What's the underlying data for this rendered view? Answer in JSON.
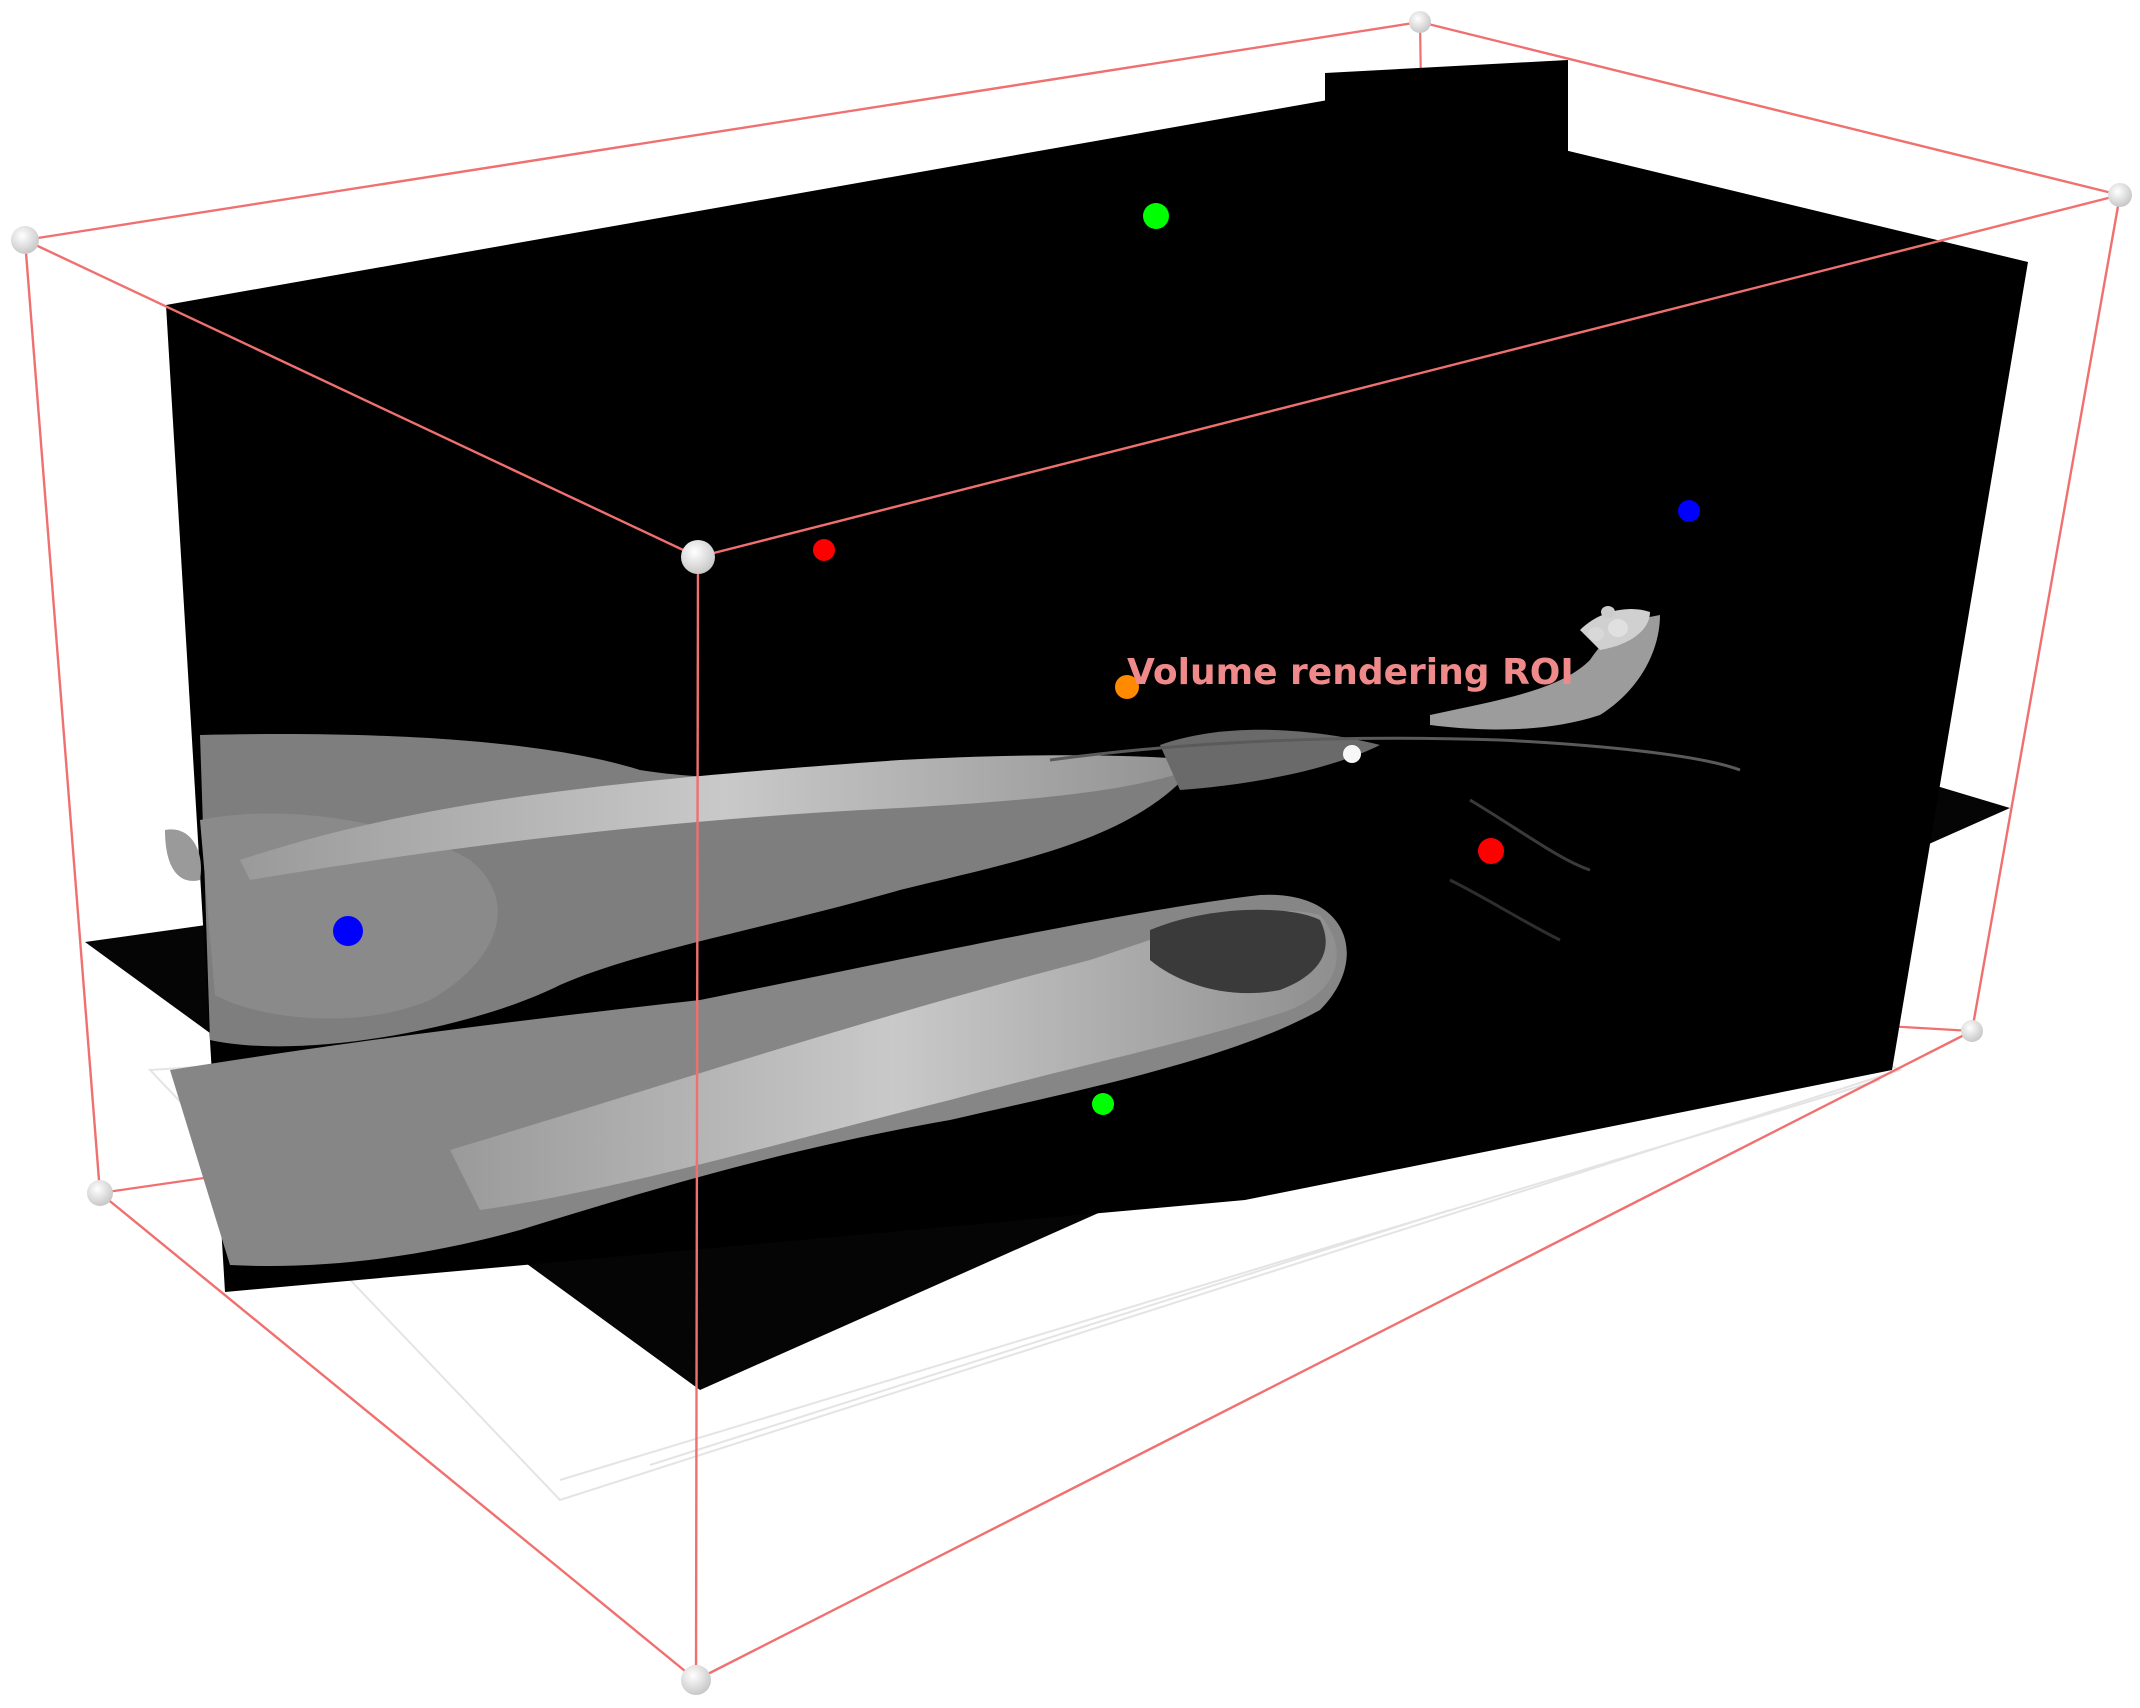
{
  "view": {
    "roi": {
      "label": "Volume rendering ROI",
      "box_color": "#f07070",
      "label_color": "#f08a8a",
      "corner_handle_color": "#dcdcdc",
      "center_handle_color": "#f7f7f7",
      "label_handle_color": "#ff8a00"
    },
    "slice_colors": {
      "background": "#000000",
      "tissue": "#8a8a8a",
      "bone": "#c8c8c8"
    },
    "axis_handle_colors": {
      "x": "#ff0000",
      "y": "#00ff00",
      "z": "#0000ff"
    }
  }
}
